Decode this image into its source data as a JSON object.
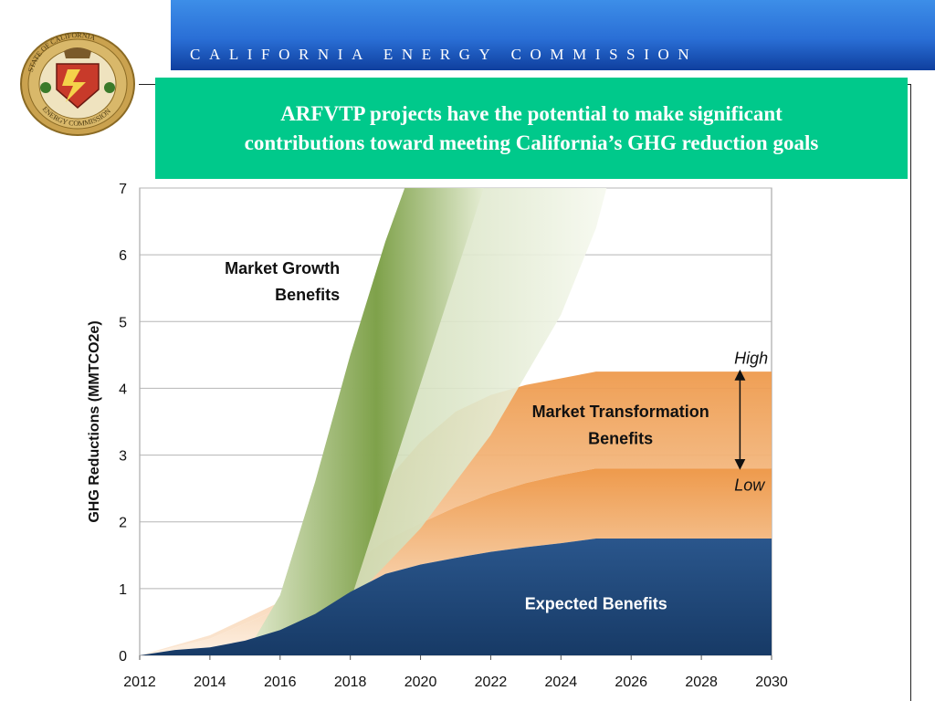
{
  "header": {
    "organization": "CALIFORNIA ENERGY COMMISSION",
    "logo_text_top": "STATE OF CALIFORNIA",
    "logo_text_bottom": "ENERGY COMMISSION"
  },
  "title_box": {
    "line1": "ARFVTP projects have the potential to make significant",
    "line2": "contributions toward meeting California’s GHG reduction goals"
  },
  "colors": {
    "header_blue": "#2a6fd6",
    "title_green": "#00c98b",
    "expected_navy": "#1f4677",
    "transformation_orange": "#ee9a4c",
    "growth_green": "#7ea24a"
  },
  "chart_data": {
    "type": "area",
    "title": "",
    "xlabel": "",
    "ylabel": "GHG Reductions (MMTCO2e)",
    "xlim": [
      2012,
      2030
    ],
    "ylim": [
      0,
      7
    ],
    "x_ticks": [
      "2012",
      "2014",
      "2016",
      "2018",
      "2020",
      "2022",
      "2024",
      "2026",
      "2028",
      "2030"
    ],
    "y_ticks": [
      "0",
      "1",
      "2",
      "3",
      "4",
      "5",
      "6",
      "7"
    ],
    "grid": true,
    "series": [
      {
        "name": "Expected Benefits",
        "points": [
          [
            2012,
            0
          ],
          [
            2013,
            0.08
          ],
          [
            2014,
            0.12
          ],
          [
            2015,
            0.22
          ],
          [
            2016,
            0.38
          ],
          [
            2017,
            0.62
          ],
          [
            2018,
            0.95
          ],
          [
            2019,
            1.22
          ],
          [
            2020,
            1.36
          ],
          [
            2021,
            1.46
          ],
          [
            2022,
            1.55
          ],
          [
            2023,
            1.62
          ],
          [
            2024,
            1.68
          ],
          [
            2025,
            1.75
          ],
          [
            2030,
            1.75
          ]
        ]
      },
      {
        "name": "Market Transformation Benefits (Low)",
        "points": [
          [
            2012,
            0
          ],
          [
            2014,
            0.25
          ],
          [
            2016,
            0.7
          ],
          [
            2018,
            1.35
          ],
          [
            2019,
            1.72
          ],
          [
            2020,
            1.98
          ],
          [
            2021,
            2.22
          ],
          [
            2022,
            2.42
          ],
          [
            2023,
            2.58
          ],
          [
            2024,
            2.7
          ],
          [
            2025,
            2.8
          ],
          [
            2030,
            2.8
          ]
        ]
      },
      {
        "name": "Market Transformation Benefits (High)",
        "points": [
          [
            2012,
            0
          ],
          [
            2014,
            0.3
          ],
          [
            2016,
            0.8
          ],
          [
            2018,
            1.8
          ],
          [
            2019,
            2.6
          ],
          [
            2020,
            3.2
          ],
          [
            2021,
            3.65
          ],
          [
            2022,
            3.9
          ],
          [
            2023,
            4.05
          ],
          [
            2024,
            4.15
          ],
          [
            2025,
            4.25
          ],
          [
            2030,
            4.25
          ]
        ]
      },
      {
        "name": "Market Growth Benefits (Low)",
        "points": [
          [
            2016,
            0
          ],
          [
            2018,
            0.8
          ],
          [
            2020,
            1.9
          ],
          [
            2022,
            3.3
          ],
          [
            2024,
            5.1
          ],
          [
            2025,
            6.4
          ],
          [
            2025.3,
            7
          ]
        ]
      },
      {
        "name": "Market Growth Benefits (High)",
        "points": [
          [
            2015,
            0
          ],
          [
            2016,
            0.9
          ],
          [
            2017,
            2.6
          ],
          [
            2018,
            4.5
          ],
          [
            2019,
            6.2
          ],
          [
            2019.55,
            7
          ]
        ]
      }
    ],
    "annotations": {
      "growth_line1": "Market Growth",
      "growth_line2": "Benefits",
      "transformation_line1": "Market Transformation",
      "transformation_line2": "Benefits",
      "high": "High",
      "low": "Low",
      "expected": "Expected Benefits"
    }
  }
}
